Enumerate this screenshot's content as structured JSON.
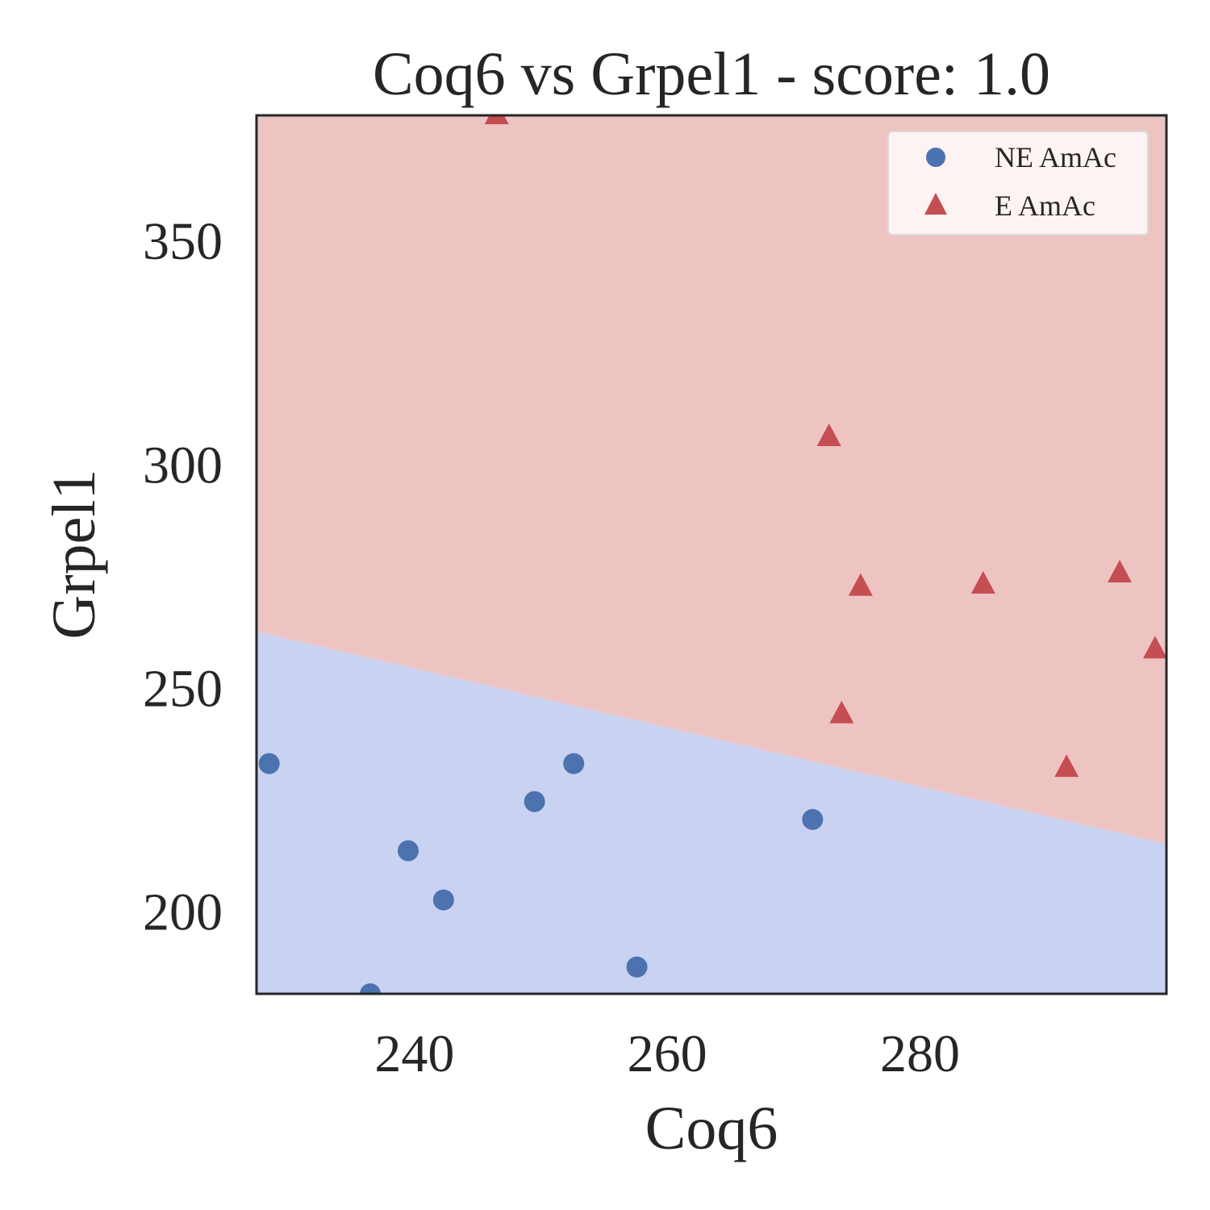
{
  "chart_data": {
    "type": "scatter",
    "title": "Coq6 vs Grpel1 - score: 1.0",
    "xlabel": "Coq6",
    "ylabel": "Grpel1",
    "xlim": [
      227.5,
      299.5
    ],
    "ylim": [
      181.5,
      378.0
    ],
    "xticks": [
      240,
      260,
      280
    ],
    "yticks": [
      200,
      250,
      300,
      350
    ],
    "grid": false,
    "legend_position": "top-right",
    "decision_boundary": {
      "points": [
        [
          227.5,
          262.5
        ],
        [
          299.5,
          215.0
        ]
      ],
      "upper_region_class": "E AmAc",
      "lower_region_class": "NE AmAc",
      "upper_color": "#eec4c3",
      "lower_color": "#c9d2f1"
    },
    "series": [
      {
        "name": "NE AmAc",
        "marker": "circle",
        "color": "#4c72b0",
        "points": [
          [
            228.5,
            233.0
          ],
          [
            236.5,
            181.5
          ],
          [
            239.5,
            213.5
          ],
          [
            242.3,
            202.5
          ],
          [
            249.5,
            224.5
          ],
          [
            252.6,
            233.0
          ],
          [
            257.6,
            187.5
          ],
          [
            271.5,
            220.5
          ]
        ]
      },
      {
        "name": "E AmAc",
        "marker": "triangle",
        "color": "#c44e52",
        "points": [
          [
            246.5,
            378.0
          ],
          [
            272.8,
            306.0
          ],
          [
            273.8,
            244.0
          ],
          [
            275.3,
            272.5
          ],
          [
            285.0,
            273.0
          ],
          [
            291.6,
            232.0
          ],
          [
            295.8,
            275.5
          ],
          [
            298.6,
            258.5
          ]
        ]
      }
    ]
  }
}
